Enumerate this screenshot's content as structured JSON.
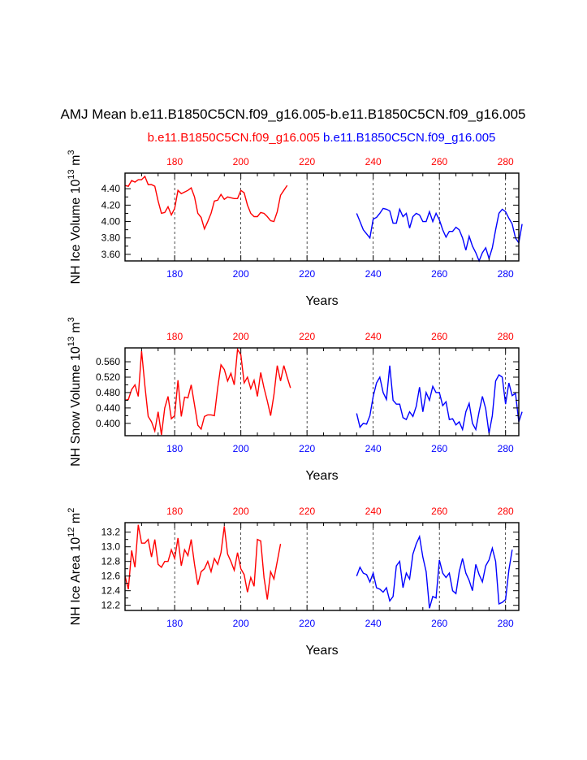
{
  "title": "AMJ Mean b.e11.B1850C5CN.f09_g16.005-b.e11.B1850C5CN.f09_g16.005",
  "legend": {
    "red_label": "b.e11.B1850C5CN.f09_g16.005",
    "blue_label": "b.e11.B1850C5CN.f09_g16.005"
  },
  "colors": {
    "red": "#ff0000",
    "blue": "#0000ff",
    "axis": "#000000"
  },
  "chart_data": [
    {
      "type": "line",
      "ylabel_main": "NH Ice Volume 10",
      "ylabel_exp": "13",
      "ylabel_unit": " m",
      "ylabel_unit_exp": "3",
      "xlabel": "Years",
      "xlim": [
        165,
        284
      ],
      "ylim": [
        3.52,
        4.59
      ],
      "yticks": [
        3.6,
        3.8,
        4.0,
        4.2,
        4.4
      ],
      "ytick_labels": [
        "3.60",
        "3.80",
        "4.00",
        "4.20",
        "4.40"
      ],
      "xticks": [
        180,
        200,
        220,
        240,
        260,
        280
      ],
      "xtick_labels": [
        "180",
        "200",
        "220",
        "240",
        "260",
        "280"
      ],
      "gridlines_x": [
        180,
        200,
        220,
        240,
        260,
        280
      ],
      "series": [
        {
          "name": "red",
          "x_start": 165,
          "values": [
            4.44,
            4.43,
            4.5,
            4.48,
            4.51,
            4.51,
            4.55,
            4.45,
            4.45,
            4.43,
            4.25,
            4.1,
            4.11,
            4.18,
            4.08,
            4.16,
            4.38,
            4.34,
            4.36,
            4.38,
            4.41,
            4.3,
            4.1,
            4.05,
            3.91,
            4.0,
            4.1,
            4.25,
            4.26,
            4.33,
            4.27,
            4.3,
            4.29,
            4.28,
            4.28,
            4.38,
            4.35,
            4.2,
            4.1,
            4.06,
            4.06,
            4.11,
            4.1,
            4.06,
            4.01,
            4.0,
            4.12,
            4.32,
            4.38,
            4.44
          ]
        },
        {
          "name": "blue",
          "x_start": 235,
          "values": [
            4.1,
            4.0,
            3.9,
            3.85,
            3.8,
            4.03,
            4.05,
            4.1,
            4.16,
            4.15,
            4.13,
            3.98,
            3.98,
            4.15,
            4.06,
            4.1,
            3.92,
            4.06,
            4.1,
            4.08,
            4.0,
            4.0,
            4.12,
            4.0,
            4.1,
            4.02,
            3.9,
            3.81,
            3.88,
            3.88,
            3.93,
            3.9,
            3.8,
            3.65,
            3.82,
            3.7,
            3.62,
            3.52,
            3.62,
            3.68,
            3.55,
            3.68,
            3.9,
            4.1,
            4.15,
            4.12,
            4.04,
            3.97,
            3.8,
            3.74,
            3.97
          ]
        }
      ]
    },
    {
      "type": "line",
      "ylabel_main": "NH Snow Volume 10",
      "ylabel_exp": "13",
      "ylabel_unit": " m",
      "ylabel_unit_exp": "3",
      "xlabel": "Years",
      "xlim": [
        165,
        284
      ],
      "ylim": [
        0.368,
        0.596
      ],
      "yticks": [
        0.4,
        0.44,
        0.48,
        0.52,
        0.56
      ],
      "ytick_labels": [
        "0.400",
        "0.440",
        "0.480",
        "0.520",
        "0.560"
      ],
      "xticks": [
        180,
        200,
        220,
        240,
        260,
        280
      ],
      "xtick_labels": [
        "180",
        "200",
        "220",
        "240",
        "260",
        "280"
      ],
      "gridlines_x": [
        180,
        200,
        220,
        240,
        260,
        280
      ],
      "series": [
        {
          "name": "red",
          "x_start": 165,
          "values": [
            0.46,
            0.462,
            0.488,
            0.5,
            0.47,
            0.588,
            0.498,
            0.418,
            0.404,
            0.38,
            0.43,
            0.37,
            0.44,
            0.47,
            0.412,
            0.42,
            0.512,
            0.418,
            0.468,
            0.466,
            0.5,
            0.448,
            0.395,
            0.385,
            0.418,
            0.422,
            0.422,
            0.42,
            0.492,
            0.552,
            0.54,
            0.51,
            0.53,
            0.5,
            0.592,
            0.578,
            0.505,
            0.52,
            0.49,
            0.512,
            0.47,
            0.532,
            0.492,
            0.458,
            0.42,
            0.474,
            0.55,
            0.51,
            0.55,
            0.52,
            0.492
          ]
        },
        {
          "name": "blue",
          "x_start": 235,
          "values": [
            0.426,
            0.39,
            0.4,
            0.398,
            0.42,
            0.47,
            0.505,
            0.52,
            0.48,
            0.462,
            0.55,
            0.46,
            0.45,
            0.45,
            0.415,
            0.41,
            0.43,
            0.418,
            0.444,
            0.494,
            0.43,
            0.48,
            0.46,
            0.496,
            0.48,
            0.48,
            0.446,
            0.456,
            0.41,
            0.412,
            0.396,
            0.404,
            0.384,
            0.43,
            0.452,
            0.4,
            0.384,
            0.43,
            0.47,
            0.438,
            0.374,
            0.42,
            0.51,
            0.526,
            0.52,
            0.45,
            0.505,
            0.472,
            0.478,
            0.404,
            0.43
          ]
        }
      ]
    },
    {
      "type": "line",
      "ylabel_main": "NH Ice Area 10",
      "ylabel_exp": "12",
      "ylabel_unit": " m",
      "ylabel_unit_exp": "2",
      "xlabel": "Years",
      "xlim": [
        165,
        284
      ],
      "ylim": [
        12.13,
        13.33
      ],
      "yticks": [
        12.2,
        12.4,
        12.6,
        12.8,
        13.0,
        13.2
      ],
      "ytick_labels": [
        "12.2",
        "12.4",
        "12.6",
        "12.8",
        "13.0",
        "13.2"
      ],
      "xticks": [
        180,
        200,
        220,
        240,
        260,
        280
      ],
      "xtick_labels": [
        "180",
        "200",
        "220",
        "240",
        "260",
        "280"
      ],
      "gridlines_x": [
        180,
        200,
        220,
        240,
        260,
        280
      ],
      "series": [
        {
          "name": "red",
          "x_start": 165,
          "values": [
            12.6,
            12.42,
            12.95,
            12.72,
            13.3,
            13.05,
            13.05,
            13.1,
            12.86,
            13.1,
            12.76,
            12.72,
            12.8,
            12.8,
            12.96,
            12.84,
            13.12,
            12.74,
            12.96,
            12.88,
            13.1,
            12.76,
            12.48,
            12.66,
            12.7,
            12.8,
            12.66,
            12.84,
            12.76,
            12.92,
            13.28,
            12.9,
            12.8,
            12.68,
            12.92,
            12.7,
            12.62,
            12.38,
            12.58,
            12.46,
            13.1,
            13.08,
            12.58,
            12.28,
            12.66,
            12.56,
            12.8,
            13.04
          ]
        },
        {
          "name": "blue",
          "x_start": 235,
          "values": [
            12.6,
            12.72,
            12.64,
            12.62,
            12.52,
            12.64,
            12.44,
            12.42,
            12.38,
            12.44,
            12.26,
            12.32,
            12.74,
            12.8,
            12.44,
            12.64,
            12.56,
            12.9,
            13.04,
            13.14,
            12.86,
            12.66,
            12.16,
            12.32,
            12.3,
            12.82,
            12.64,
            12.58,
            12.64,
            12.4,
            12.36,
            12.66,
            12.84,
            12.64,
            12.54,
            12.4,
            12.76,
            12.62,
            12.52,
            12.74,
            12.82,
            12.98,
            12.8,
            12.22,
            12.24,
            12.28,
            12.68,
            12.96
          ]
        }
      ]
    }
  ]
}
